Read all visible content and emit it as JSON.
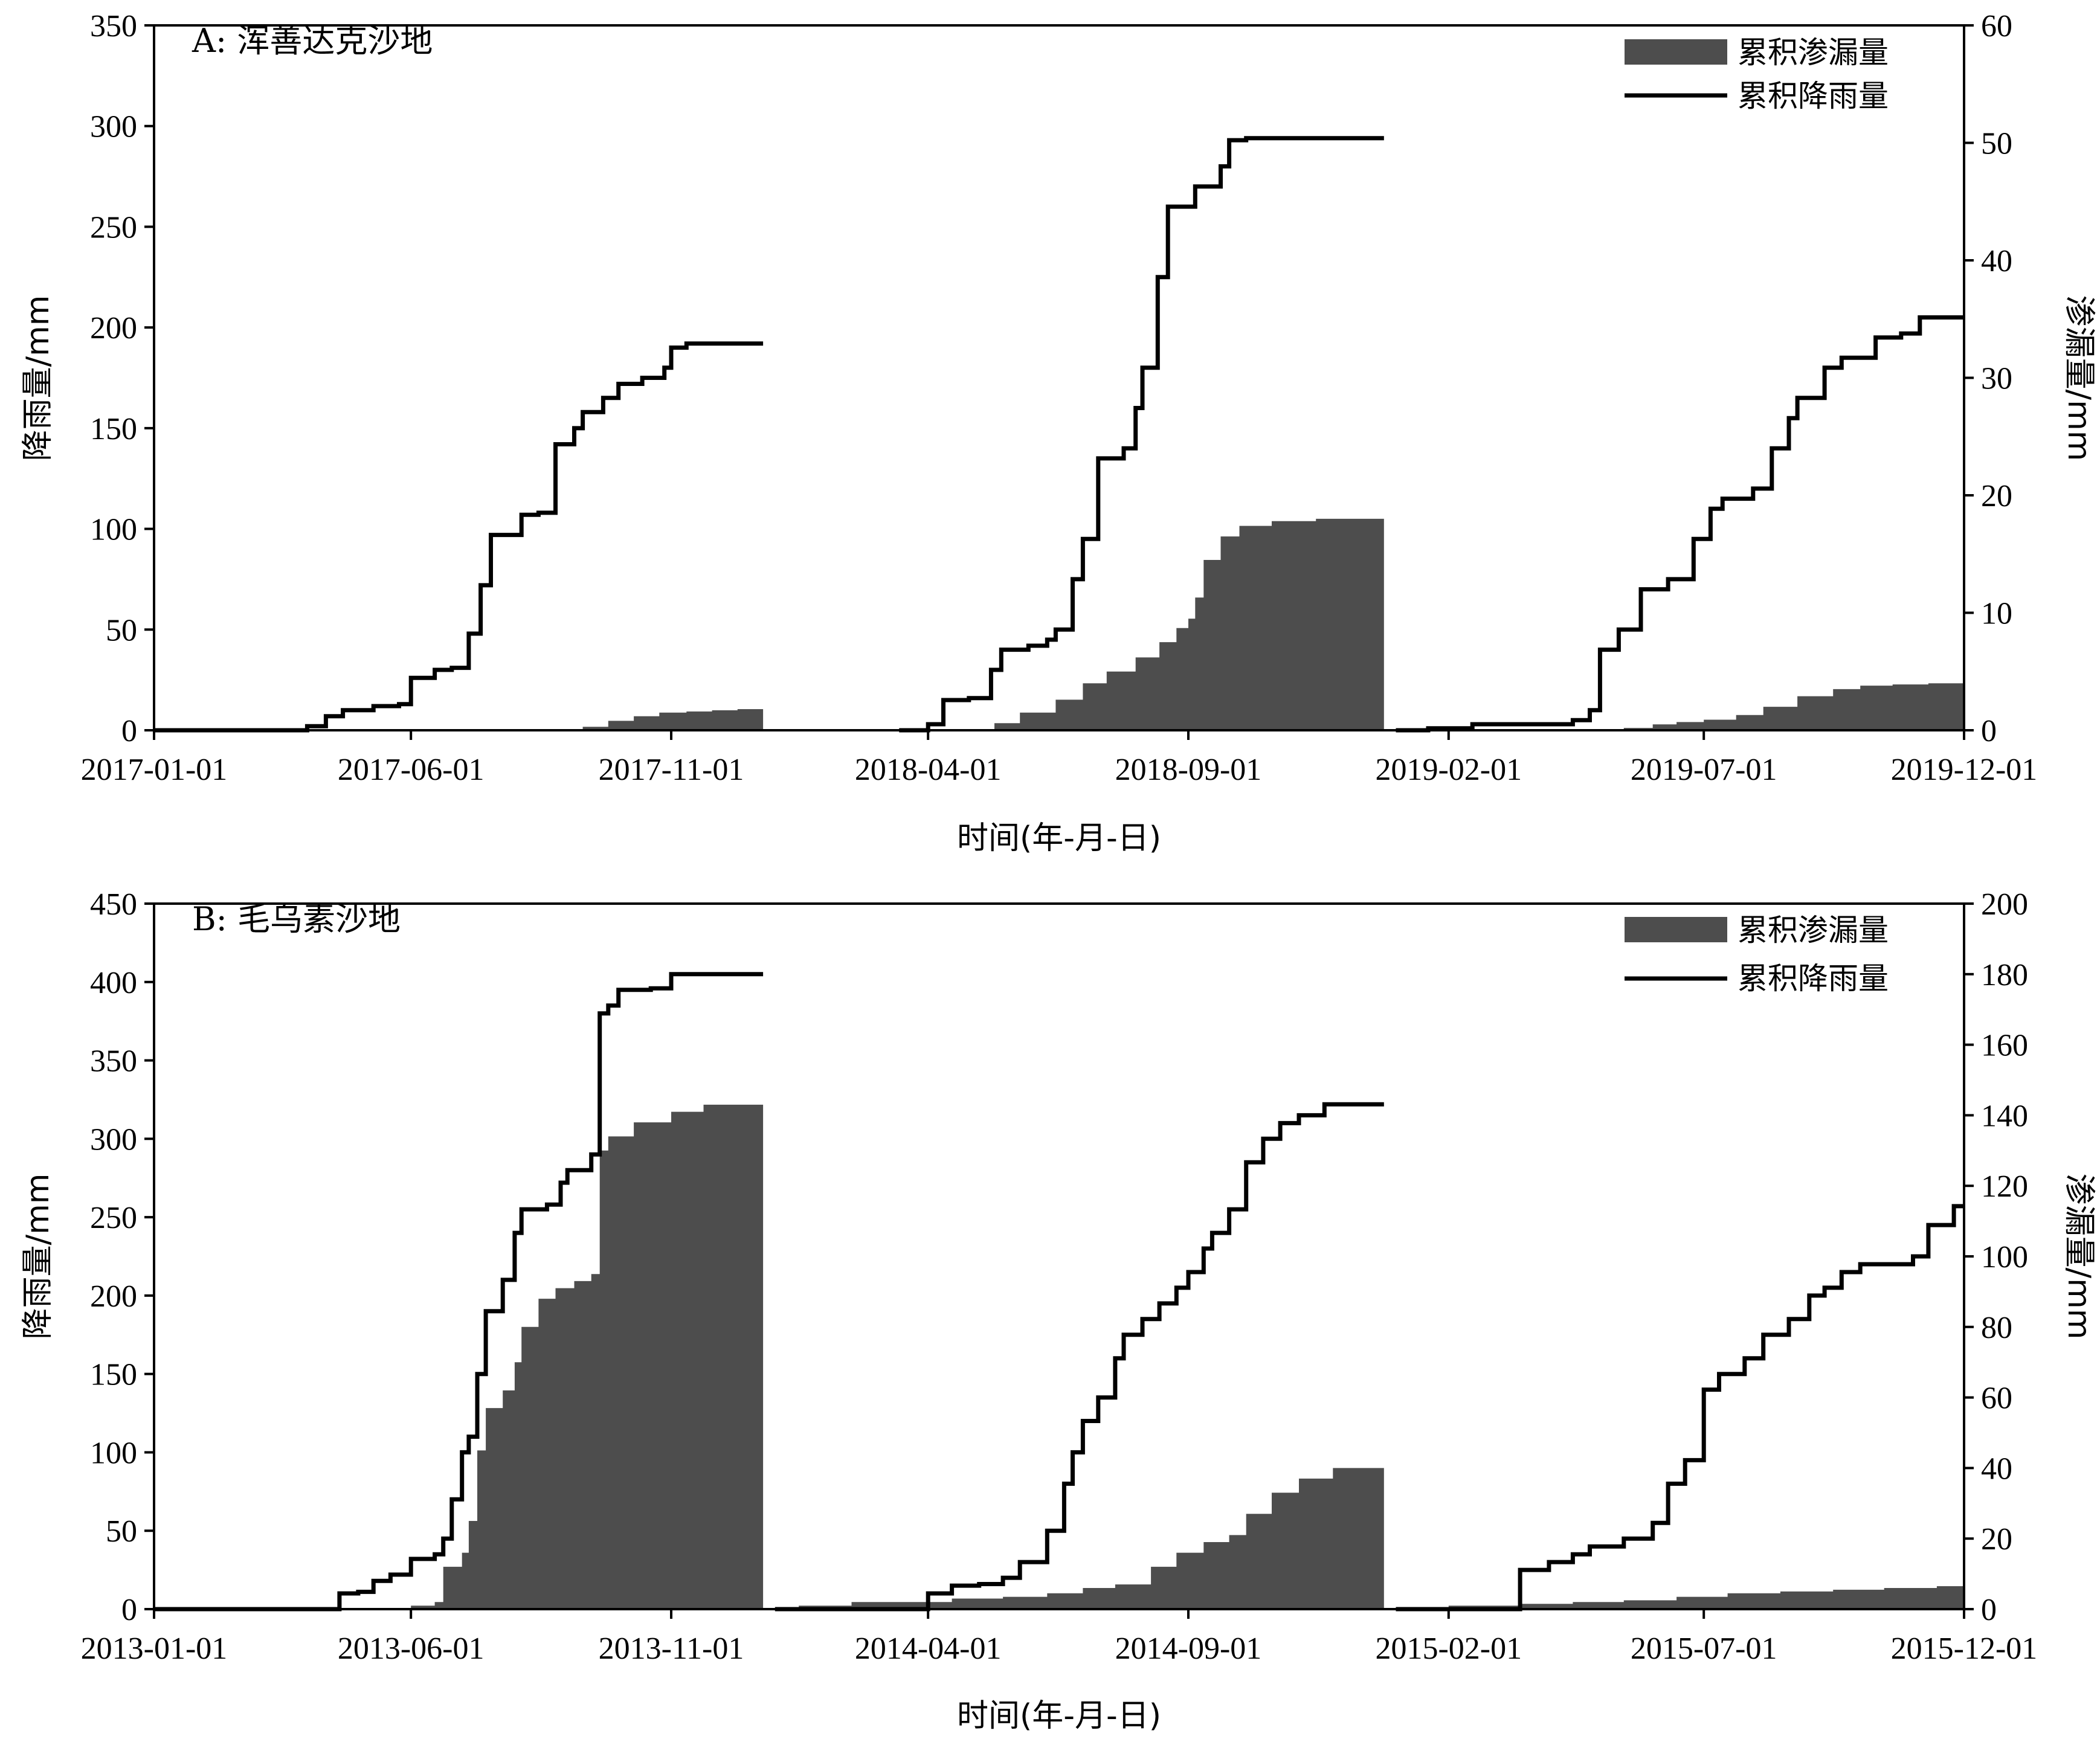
{
  "chart_data": [
    {
      "panel": "A",
      "type": "area+line",
      "title": "A: 浑善达克沙地",
      "xlabel": "时间(年-月-日)",
      "ylabel_left": "降雨量/mm",
      "ylabel_right": "渗漏量/mm",
      "x_ticks": [
        "2017-01-01",
        "2017-06-01",
        "2017-11-01",
        "2018-04-01",
        "2018-09-01",
        "2019-02-01",
        "2019-07-01",
        "2019-12-01"
      ],
      "ylim_left": [
        0,
        350
      ],
      "yticks_left": [
        0,
        50,
        100,
        150,
        200,
        250,
        300,
        350
      ],
      "ylim_right": [
        0,
        60
      ],
      "yticks_right": [
        0,
        10,
        20,
        30,
        40,
        50,
        60
      ],
      "legend": {
        "position": "top-right",
        "area": "累积渗漏量",
        "line": "累积降雨量"
      },
      "rain_segments": [
        [
          [
            "2017-01-01",
            0
          ],
          [
            "2017-03-20",
            0
          ],
          [
            "2017-04-01",
            2
          ],
          [
            "2017-04-12",
            7
          ],
          [
            "2017-04-22",
            10
          ],
          [
            "2017-05-10",
            12
          ],
          [
            "2017-05-25",
            13
          ],
          [
            "2017-06-01",
            26
          ],
          [
            "2017-06-12",
            26
          ],
          [
            "2017-06-15",
            30
          ],
          [
            "2017-06-25",
            31
          ],
          [
            "2017-07-05",
            48
          ],
          [
            "2017-07-12",
            72
          ],
          [
            "2017-07-18",
            97
          ],
          [
            "2017-07-30",
            97
          ],
          [
            "2017-08-05",
            107
          ],
          [
            "2017-08-15",
            108
          ],
          [
            "2017-08-25",
            142
          ],
          [
            "2017-09-05",
            150
          ],
          [
            "2017-09-10",
            158
          ],
          [
            "2017-09-22",
            165
          ],
          [
            "2017-10-01",
            172
          ],
          [
            "2017-10-15",
            175
          ],
          [
            "2017-10-28",
            180
          ],
          [
            "2017-11-01",
            190
          ],
          [
            "2017-11-10",
            192
          ],
          [
            "2017-12-25",
            192
          ]
        ],
        [
          [
            "2018-03-15",
            0
          ],
          [
            "2018-03-25",
            0
          ],
          [
            "2018-04-01",
            3
          ],
          [
            "2018-04-10",
            15
          ],
          [
            "2018-04-25",
            16
          ],
          [
            "2018-05-08",
            30
          ],
          [
            "2018-05-14",
            40
          ],
          [
            "2018-05-30",
            42
          ],
          [
            "2018-06-10",
            45
          ],
          [
            "2018-06-15",
            50
          ],
          [
            "2018-06-25",
            75
          ],
          [
            "2018-07-01",
            95
          ],
          [
            "2018-07-10",
            135
          ],
          [
            "2018-07-25",
            140
          ],
          [
            "2018-08-01",
            160
          ],
          [
            "2018-08-05",
            180
          ],
          [
            "2018-08-14",
            225
          ],
          [
            "2018-08-20",
            260
          ],
          [
            "2018-09-05",
            270
          ],
          [
            "2018-09-20",
            280
          ],
          [
            "2018-09-25",
            293
          ],
          [
            "2018-10-05",
            294
          ],
          [
            "2018-12-25",
            294
          ]
        ],
        [
          [
            "2019-01-01",
            0
          ],
          [
            "2019-01-20",
            1
          ],
          [
            "2019-02-15",
            3
          ],
          [
            "2019-04-15",
            5
          ],
          [
            "2019-04-25",
            10
          ],
          [
            "2019-05-01",
            40
          ],
          [
            "2019-05-12",
            50
          ],
          [
            "2019-05-25",
            70
          ],
          [
            "2019-06-10",
            75
          ],
          [
            "2019-06-25",
            95
          ],
          [
            "2019-07-05",
            110
          ],
          [
            "2019-07-12",
            115
          ],
          [
            "2019-07-30",
            120
          ],
          [
            "2019-08-10",
            140
          ],
          [
            "2019-08-20",
            155
          ],
          [
            "2019-08-25",
            165
          ],
          [
            "2019-09-10",
            180
          ],
          [
            "2019-09-20",
            185
          ],
          [
            "2019-10-10",
            195
          ],
          [
            "2019-10-25",
            197
          ],
          [
            "2019-11-05",
            205
          ],
          [
            "2019-12-01",
            205
          ]
        ]
      ],
      "perc_segments": [
        [
          [
            "2017-01-01",
            0
          ],
          [
            "2017-08-25",
            0
          ],
          [
            "2017-09-10",
            0.3
          ],
          [
            "2017-09-25",
            0.8
          ],
          [
            "2017-10-10",
            1.2
          ],
          [
            "2017-10-25",
            1.5
          ],
          [
            "2017-11-10",
            1.6
          ],
          [
            "2017-11-25",
            1.7
          ],
          [
            "2017-12-10",
            1.8
          ],
          [
            "2017-12-25",
            1.9
          ]
        ],
        [
          [
            "2018-03-15",
            0
          ],
          [
            "2018-04-20",
            0
          ],
          [
            "2018-05-10",
            0.6
          ],
          [
            "2018-05-25",
            1.5
          ],
          [
            "2018-06-15",
            2.6
          ],
          [
            "2018-07-01",
            4
          ],
          [
            "2018-07-15",
            5
          ],
          [
            "2018-08-01",
            6.2
          ],
          [
            "2018-08-15",
            7.5
          ],
          [
            "2018-08-25",
            8.7
          ],
          [
            "2018-09-01",
            9.5
          ],
          [
            "2018-09-05",
            11.3
          ],
          [
            "2018-09-10",
            14.5
          ],
          [
            "2018-09-20",
            16.5
          ],
          [
            "2018-10-01",
            17.4
          ],
          [
            "2018-10-20",
            17.8
          ],
          [
            "2018-11-15",
            18
          ],
          [
            "2018-12-25",
            18.3
          ]
        ],
        [
          [
            "2019-01-01",
            0
          ],
          [
            "2019-05-15",
            0.2
          ],
          [
            "2019-06-01",
            0.5
          ],
          [
            "2019-06-15",
            0.7
          ],
          [
            "2019-07-01",
            0.9
          ],
          [
            "2019-07-20",
            1.3
          ],
          [
            "2019-08-05",
            2
          ],
          [
            "2019-08-25",
            2.9
          ],
          [
            "2019-09-15",
            3.5
          ],
          [
            "2019-10-01",
            3.8
          ],
          [
            "2019-10-20",
            3.9
          ],
          [
            "2019-11-10",
            4
          ],
          [
            "2019-12-01",
            4.1
          ]
        ]
      ]
    },
    {
      "panel": "B",
      "type": "area+line",
      "title": "B: 毛乌素沙地",
      "xlabel": "时间(年-月-日)",
      "ylabel_left": "降雨量/mm",
      "ylabel_right": "渗漏量/mm",
      "x_ticks": [
        "2013-01-01",
        "2013-06-01",
        "2013-11-01",
        "2014-04-01",
        "2014-09-01",
        "2015-02-01",
        "2015-07-01",
        "2015-12-01"
      ],
      "ylim_left": [
        0,
        450
      ],
      "yticks_left": [
        0,
        50,
        100,
        150,
        200,
        250,
        300,
        350,
        400,
        450
      ],
      "ylim_right": [
        0,
        200
      ],
      "yticks_right": [
        0,
        20,
        40,
        60,
        80,
        100,
        120,
        140,
        160,
        180,
        200
      ],
      "legend": {
        "position": "top-right",
        "area": "累积渗漏量",
        "line": "累积降雨量"
      },
      "rain_segments": [
        [
          [
            "2013-01-01",
            0
          ],
          [
            "2013-04-15",
            0
          ],
          [
            "2013-04-20",
            10
          ],
          [
            "2013-05-01",
            11
          ],
          [
            "2013-05-10",
            18
          ],
          [
            "2013-05-20",
            22
          ],
          [
            "2013-06-01",
            32
          ],
          [
            "2013-06-15",
            35
          ],
          [
            "2013-06-20",
            45
          ],
          [
            "2013-06-25",
            70
          ],
          [
            "2013-07-01",
            100
          ],
          [
            "2013-07-05",
            110
          ],
          [
            "2013-07-10",
            150
          ],
          [
            "2013-07-15",
            190
          ],
          [
            "2013-07-25",
            210
          ],
          [
            "2013-08-01",
            240
          ],
          [
            "2013-08-05",
            255
          ],
          [
            "2013-08-20",
            258
          ],
          [
            "2013-08-28",
            272
          ],
          [
            "2013-09-01",
            280
          ],
          [
            "2013-09-15",
            290
          ],
          [
            "2013-09-20",
            380
          ],
          [
            "2013-09-25",
            385
          ],
          [
            "2013-10-01",
            395
          ],
          [
            "2013-10-20",
            396
          ],
          [
            "2013-11-01",
            405
          ],
          [
            "2013-12-25",
            405
          ]
        ],
        [
          [
            "2014-01-01",
            0
          ],
          [
            "2014-03-25",
            0
          ],
          [
            "2014-04-01",
            10
          ],
          [
            "2014-04-15",
            15
          ],
          [
            "2014-05-01",
            16
          ],
          [
            "2014-05-15",
            20
          ],
          [
            "2014-05-25",
            30
          ],
          [
            "2014-06-10",
            50
          ],
          [
            "2014-06-20",
            80
          ],
          [
            "2014-06-25",
            100
          ],
          [
            "2014-07-01",
            120
          ],
          [
            "2014-07-10",
            135
          ],
          [
            "2014-07-20",
            160
          ],
          [
            "2014-07-25",
            175
          ],
          [
            "2014-08-05",
            185
          ],
          [
            "2014-08-15",
            195
          ],
          [
            "2014-08-25",
            205
          ],
          [
            "2014-09-01",
            215
          ],
          [
            "2014-09-10",
            230
          ],
          [
            "2014-09-15",
            240
          ],
          [
            "2014-09-25",
            255
          ],
          [
            "2014-10-05",
            285
          ],
          [
            "2014-10-15",
            300
          ],
          [
            "2014-10-25",
            310
          ],
          [
            "2014-11-05",
            315
          ],
          [
            "2014-11-20",
            322
          ],
          [
            "2014-12-25",
            322
          ]
        ],
        [
          [
            "2015-01-01",
            0
          ],
          [
            "2015-03-10",
            0
          ],
          [
            "2015-03-15",
            25
          ],
          [
            "2015-04-01",
            30
          ],
          [
            "2015-04-15",
            35
          ],
          [
            "2015-04-25",
            40
          ],
          [
            "2015-05-15",
            45
          ],
          [
            "2015-06-01",
            55
          ],
          [
            "2015-06-10",
            80
          ],
          [
            "2015-06-20",
            95
          ],
          [
            "2015-07-01",
            140
          ],
          [
            "2015-07-10",
            150
          ],
          [
            "2015-07-25",
            160
          ],
          [
            "2015-08-05",
            175
          ],
          [
            "2015-08-20",
            185
          ],
          [
            "2015-09-01",
            200
          ],
          [
            "2015-09-10",
            205
          ],
          [
            "2015-09-20",
            215
          ],
          [
            "2015-10-01",
            220
          ],
          [
            "2015-11-01",
            225
          ],
          [
            "2015-11-10",
            245
          ],
          [
            "2015-11-25",
            257
          ],
          [
            "2015-12-01",
            257
          ]
        ]
      ],
      "perc_segments": [
        [
          [
            "2013-01-01",
            0
          ],
          [
            "2013-05-10",
            0
          ],
          [
            "2013-06-01",
            1
          ],
          [
            "2013-06-15",
            2
          ],
          [
            "2013-06-20",
            12
          ],
          [
            "2013-07-01",
            16
          ],
          [
            "2013-07-05",
            25
          ],
          [
            "2013-07-10",
            45
          ],
          [
            "2013-07-15",
            57
          ],
          [
            "2013-07-25",
            62
          ],
          [
            "2013-08-01",
            70
          ],
          [
            "2013-08-05",
            80
          ],
          [
            "2013-08-15",
            88
          ],
          [
            "2013-08-25",
            91
          ],
          [
            "2013-09-05",
            93
          ],
          [
            "2013-09-15",
            95
          ],
          [
            "2013-09-20",
            130
          ],
          [
            "2013-09-25",
            134
          ],
          [
            "2013-10-10",
            138
          ],
          [
            "2013-11-01",
            141
          ],
          [
            "2013-11-20",
            143
          ],
          [
            "2013-12-25",
            144
          ]
        ],
        [
          [
            "2014-01-01",
            0
          ],
          [
            "2014-01-15",
            1
          ],
          [
            "2014-02-15",
            2
          ],
          [
            "2014-04-15",
            3
          ],
          [
            "2014-05-15",
            3.5
          ],
          [
            "2014-06-10",
            4.5
          ],
          [
            "2014-07-01",
            6
          ],
          [
            "2014-07-20",
            7
          ],
          [
            "2014-08-10",
            12
          ],
          [
            "2014-08-25",
            16
          ],
          [
            "2014-09-10",
            19
          ],
          [
            "2014-09-25",
            21
          ],
          [
            "2014-10-05",
            27
          ],
          [
            "2014-10-20",
            33
          ],
          [
            "2014-11-05",
            37
          ],
          [
            "2014-11-25",
            40
          ],
          [
            "2014-12-25",
            41
          ]
        ],
        [
          [
            "2015-01-01",
            0
          ],
          [
            "2015-02-01",
            1
          ],
          [
            "2015-03-15",
            1.5
          ],
          [
            "2015-04-15",
            2
          ],
          [
            "2015-05-15",
            2.5
          ],
          [
            "2015-06-15",
            3.5
          ],
          [
            "2015-07-15",
            4.5
          ],
          [
            "2015-08-15",
            5
          ],
          [
            "2015-09-15",
            5.5
          ],
          [
            "2015-10-15",
            6
          ],
          [
            "2015-11-15",
            6.5
          ],
          [
            "2015-12-01",
            7
          ]
        ]
      ]
    }
  ]
}
